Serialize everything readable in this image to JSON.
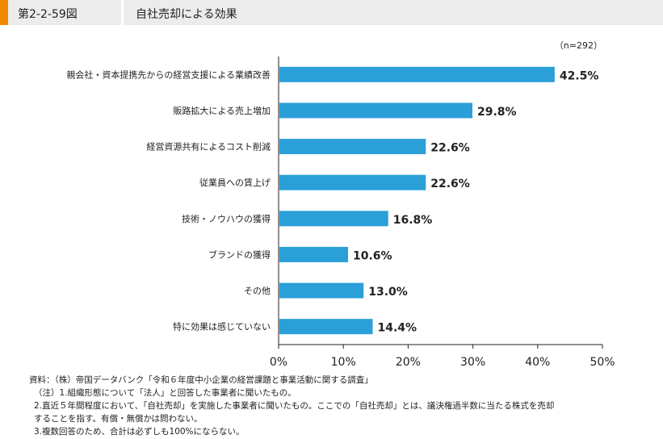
{
  "header": {
    "figure_number": "第2-2-59図",
    "title": "自社売却による効果"
  },
  "colors": {
    "accent": "#f08a00",
    "bar": "#2b9fd8",
    "header_bg": "#ececec"
  },
  "chart_data": {
    "type": "bar",
    "orientation": "horizontal",
    "annotation": "（n=292）",
    "categories": [
      "親会社・資本提携先からの経営支援による業績改善",
      "販路拡大による売上増加",
      "経営資源共有によるコスト削減",
      "従業員への賃上げ",
      "技術・ノウハウの獲得",
      "ブランドの獲得",
      "その他",
      "特に効果は感じていない"
    ],
    "values": [
      42.5,
      29.8,
      22.6,
      22.6,
      16.8,
      10.6,
      13.0,
      14.4
    ],
    "value_labels": [
      "42.5%",
      "29.8%",
      "22.6%",
      "22.6%",
      "16.8%",
      "10.6%",
      "13.0%",
      "14.4%"
    ],
    "xlim": [
      0,
      50
    ],
    "xticks": [
      0,
      10,
      20,
      30,
      40,
      50
    ],
    "xtick_labels": [
      "0%",
      "10%",
      "20%",
      "30%",
      "40%",
      "50%"
    ],
    "grid": false
  },
  "notes": [
    "資料：（株）帝国データバンク「令和６年度中小企業の経営課題と事業活動に関する調査」",
    "（注）1.組織形態について「法人」と回答した事業者に聞いたもの。",
    "2.直近５年間程度において、「自社売却」を実施した事業者に聞いたもの。ここでの「自社売却」とは、議決権過半数に当たる株式を売却",
    "することを指す。有償・無償かは問わない。",
    "3.複数回答のため、合計は必ずしも100%にならない。"
  ]
}
